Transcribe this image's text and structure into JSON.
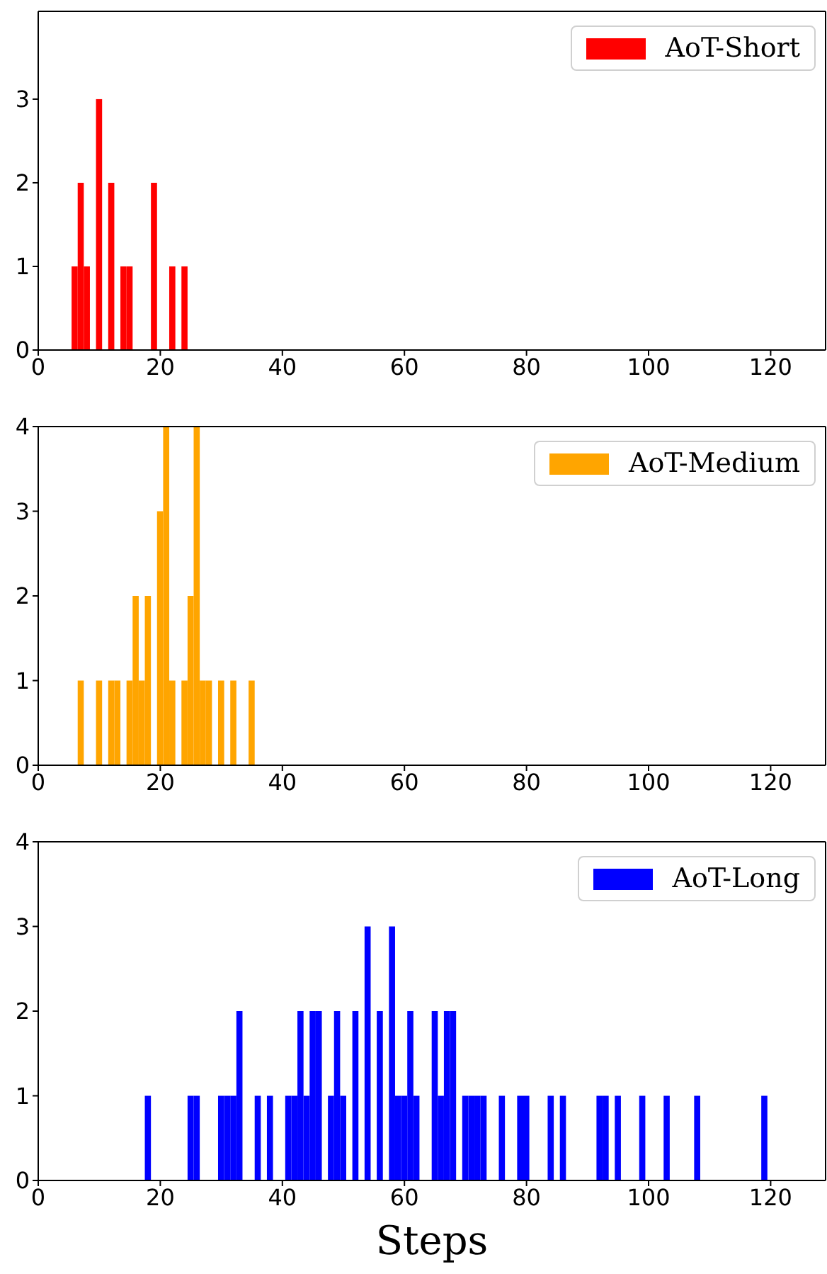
{
  "chart_data": [
    {
      "type": "histogram",
      "bins": [
        5.5,
        6.5,
        7.5,
        8.5,
        9.5,
        10.5,
        11.5,
        12.5,
        13.5,
        14.5,
        15.5,
        16.5,
        17.5,
        18.5,
        19.5,
        20.5,
        21.5,
        22.5,
        23.5,
        24.5
      ],
      "series": [
        {
          "name": "AoT-Short",
          "color": "#ff0000",
          "values": [
            1,
            2,
            1,
            0,
            3,
            0,
            2,
            0,
            1,
            1,
            0,
            0,
            0,
            2,
            0,
            0,
            1,
            0,
            1
          ]
        }
      ],
      "xlim": [
        0,
        129
      ],
      "xticks": [
        0,
        20,
        40,
        60,
        80,
        100,
        120
      ],
      "ylim": [
        0,
        4.05
      ],
      "yticks": [
        0,
        1,
        2,
        3
      ],
      "legend": "top right",
      "grid": false
    },
    {
      "type": "histogram",
      "bins": [
        6.5,
        7.5,
        8.5,
        9.5,
        10.5,
        11.5,
        12.5,
        13.5,
        14.5,
        15.5,
        16.5,
        17.5,
        18.5,
        19.5,
        20.5,
        21.5,
        22.5,
        23.5,
        24.5,
        25.5,
        26.5,
        27.5,
        28.5,
        29.5,
        30.5,
        31.5,
        32.5,
        33.5,
        34.5,
        35.5
      ],
      "series": [
        {
          "name": "AoT-Medium",
          "color": "#ffa500",
          "values": [
            1,
            0,
            0,
            1,
            0,
            1,
            1,
            0,
            1,
            2,
            1,
            2,
            0,
            3,
            4,
            1,
            0,
            1,
            2,
            4,
            1,
            1,
            0,
            1,
            0,
            1,
            0,
            0,
            1
          ]
        }
      ],
      "xlim": [
        0,
        129
      ],
      "xticks": [
        0,
        20,
        40,
        60,
        80,
        100,
        120
      ],
      "ylim": [
        0,
        4
      ],
      "yticks": [
        0,
        1,
        2,
        3,
        4
      ],
      "legend": "top right",
      "grid": false
    },
    {
      "type": "histogram",
      "xlabel": "Steps",
      "bins": [
        17.5,
        18.5,
        19.5,
        20.5,
        21.5,
        22.5,
        23.5,
        24.5,
        25.5,
        26.5,
        27.5,
        28.5,
        29.5,
        30.5,
        31.5,
        32.5,
        33.5,
        34.5,
        35.5,
        36.5,
        37.5,
        38.5,
        39.5,
        40.5,
        41.5,
        42.5,
        43.5,
        44.5,
        45.5,
        46.5,
        47.5,
        48.5,
        49.5,
        50.5,
        51.5,
        52.5,
        53.5,
        54.5,
        55.5,
        56.5,
        57.5,
        58.5,
        59.5,
        60.5,
        61.5,
        62.5,
        63.5,
        64.5,
        65.5,
        66.5,
        67.5,
        68.5,
        69.5,
        70.5,
        71.5,
        72.5,
        73.5,
        74.5,
        75.5,
        76.5,
        77.5,
        78.5,
        79.5,
        80.5,
        81.5,
        82.5,
        83.5,
        84.5,
        85.5,
        86.5,
        87.5,
        88.5,
        89.5,
        90.5,
        91.5,
        92.5,
        93.5,
        94.5,
        95.5,
        96.5,
        97.5,
        98.5,
        99.5,
        100.5,
        101.5,
        102.5,
        103.5,
        104.5,
        105.5,
        106.5,
        107.5,
        108.5,
        109.5,
        110.5,
        111.5,
        112.5,
        113.5,
        114.5,
        115.5,
        116.5,
        117.5,
        118.5,
        119.5
      ],
      "series": [
        {
          "name": "AoT-Long",
          "color": "#0000ff",
          "values": [
            1,
            0,
            0,
            0,
            0,
            0,
            0,
            1,
            1,
            0,
            0,
            0,
            1,
            1,
            1,
            2,
            0,
            0,
            1,
            0,
            1,
            0,
            0,
            1,
            1,
            2,
            1,
            2,
            2,
            0,
            1,
            2,
            1,
            0,
            2,
            0,
            3,
            0,
            2,
            0,
            3,
            1,
            1,
            2,
            1,
            0,
            0,
            2,
            1,
            2,
            2,
            0,
            1,
            1,
            1,
            1,
            0,
            0,
            1,
            0,
            0,
            1,
            1,
            0,
            0,
            0,
            1,
            0,
            1,
            0,
            0,
            0,
            0,
            0,
            1,
            1,
            0,
            1,
            0,
            0,
            0,
            1,
            0,
            0,
            0,
            1,
            0,
            0,
            0,
            0,
            1,
            0,
            0,
            0,
            0,
            0,
            0,
            0,
            0,
            0,
            0,
            1
          ]
        }
      ],
      "xlim": [
        0,
        129
      ],
      "xticks": [
        0,
        20,
        40,
        60,
        80,
        100,
        120
      ],
      "ylim": [
        0,
        4
      ],
      "yticks": [
        0,
        1,
        2,
        3,
        4
      ],
      "legend": "top right",
      "grid": false
    }
  ]
}
